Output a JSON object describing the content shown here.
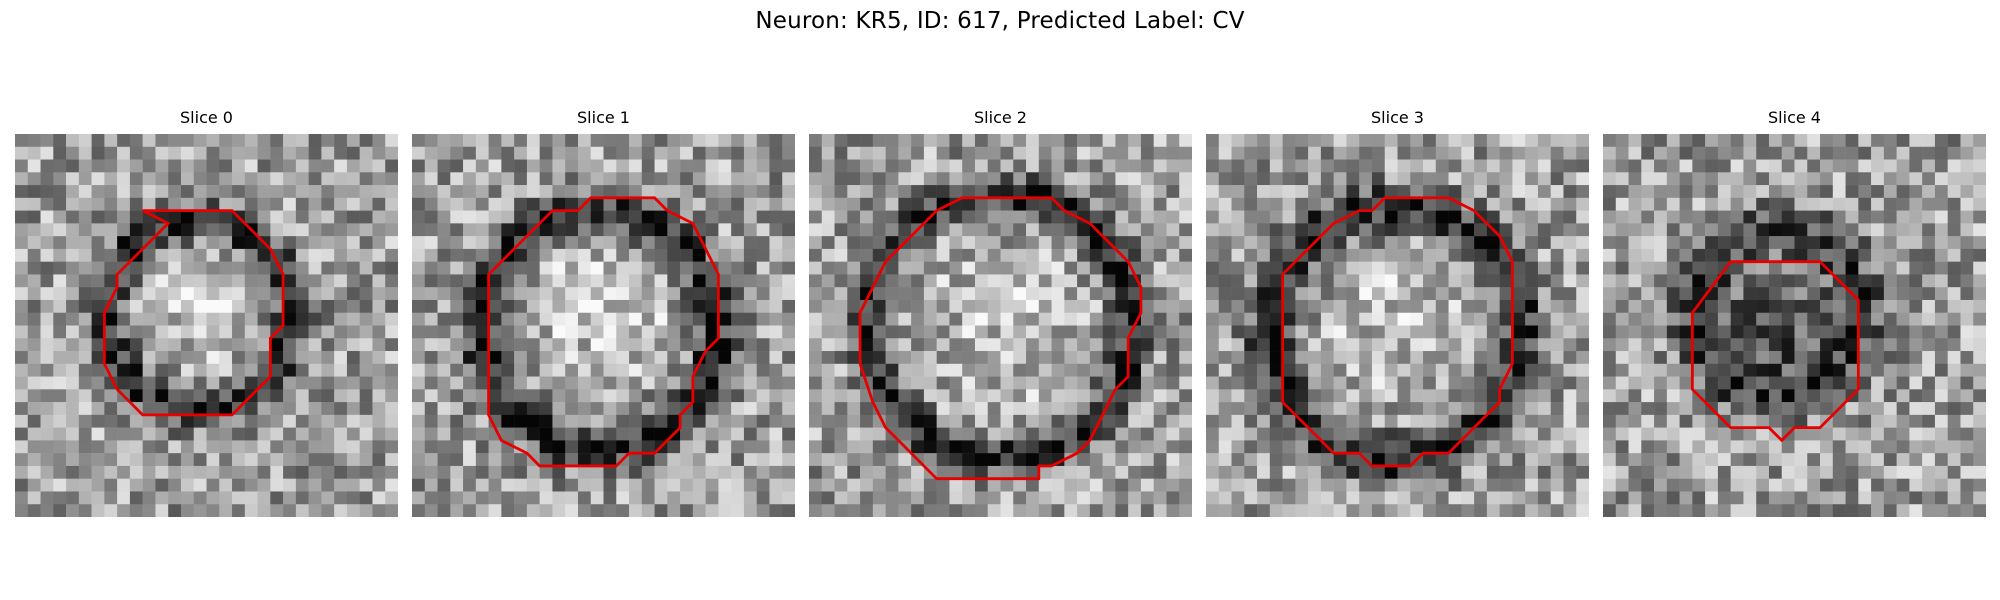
{
  "figure": {
    "title": "Neuron: KR5, ID: 617, Predicted Label: CV"
  },
  "style": {
    "contour_color": "#e60000",
    "colormap": "grayscale"
  },
  "panels": [
    {
      "title": "Slice 0",
      "grid": 30,
      "seed": 11,
      "ring": {
        "cx": 14.3,
        "cy": 14.2,
        "r": 7.3,
        "w": 1.6,
        "strength": 0.48
      },
      "blob": {
        "cx": 14.5,
        "cy": 13.0,
        "r": 4.2,
        "strength": 0.22
      },
      "contour": [
        [
          10,
          6
        ],
        [
          17,
          6
        ],
        [
          20,
          9
        ],
        [
          21,
          11
        ],
        [
          21,
          15
        ],
        [
          20,
          16
        ],
        [
          20,
          19
        ],
        [
          17,
          22
        ],
        [
          10,
          22
        ],
        [
          8,
          20
        ],
        [
          7,
          18
        ],
        [
          7,
          14
        ],
        [
          8,
          12
        ],
        [
          8,
          11
        ],
        [
          10,
          9
        ],
        [
          11,
          8
        ],
        [
          12,
          7
        ]
      ]
    },
    {
      "title": "Slice 1",
      "grid": 30,
      "seed": 23,
      "ring": {
        "cx": 14.6,
        "cy": 15.3,
        "r": 9.2,
        "w": 1.7,
        "strength": 0.5
      },
      "blob": {
        "cx": 14.5,
        "cy": 13.0,
        "r": 6.0,
        "strength": 0.18
      },
      "contour": [
        [
          14,
          5
        ],
        [
          19,
          5
        ],
        [
          20,
          6
        ],
        [
          22,
          7
        ],
        [
          23,
          9
        ],
        [
          24,
          11
        ],
        [
          24,
          16
        ],
        [
          23,
          17
        ],
        [
          22,
          19
        ],
        [
          22,
          21
        ],
        [
          21,
          22
        ],
        [
          21,
          23
        ],
        [
          19,
          25
        ],
        [
          17,
          25
        ],
        [
          16,
          26
        ],
        [
          10,
          26
        ],
        [
          9,
          25
        ],
        [
          7,
          24
        ],
        [
          6,
          22
        ],
        [
          6,
          11
        ],
        [
          7,
          10
        ],
        [
          8,
          9
        ],
        [
          9,
          8
        ],
        [
          10,
          7
        ],
        [
          11,
          6
        ],
        [
          13,
          6
        ]
      ]
    },
    {
      "title": "Slice 2",
      "grid": 30,
      "seed": 37,
      "ring": {
        "cx": 15.0,
        "cy": 15.0,
        "r": 10.3,
        "w": 1.5,
        "strength": 0.5
      },
      "blob": {
        "cx": 15.0,
        "cy": 15.0,
        "r": 7.0,
        "strength": 0.12
      },
      "contour": [
        [
          12,
          5
        ],
        [
          19,
          5
        ],
        [
          20,
          6
        ],
        [
          22,
          7
        ],
        [
          23,
          8
        ],
        [
          24,
          9
        ],
        [
          25,
          10
        ],
        [
          26,
          12
        ],
        [
          26,
          14
        ],
        [
          25,
          16
        ],
        [
          25,
          19
        ],
        [
          24,
          20
        ],
        [
          23,
          22
        ],
        [
          22,
          24
        ],
        [
          21,
          25
        ],
        [
          19,
          26
        ],
        [
          18,
          26
        ],
        [
          18,
          27
        ],
        [
          10,
          27
        ],
        [
          9,
          26
        ],
        [
          8,
          25
        ],
        [
          6,
          23
        ],
        [
          5,
          21
        ],
        [
          4,
          18
        ],
        [
          4,
          14
        ],
        [
          5,
          12
        ],
        [
          6,
          10
        ],
        [
          7,
          9
        ],
        [
          8,
          8
        ],
        [
          9,
          7
        ],
        [
          10,
          6
        ]
      ]
    },
    {
      "title": "Slice 3",
      "grid": 30,
      "seed": 51,
      "ring": {
        "cx": 14.8,
        "cy": 15.6,
        "r": 9.8,
        "w": 1.8,
        "strength": 0.5
      },
      "blob": {
        "cx": 15.0,
        "cy": 15.0,
        "r": 6.5,
        "strength": 0.12
      },
      "contour": [
        [
          14,
          5
        ],
        [
          19,
          5
        ],
        [
          21,
          6
        ],
        [
          23,
          8
        ],
        [
          24,
          10
        ],
        [
          24,
          18
        ],
        [
          23,
          20
        ],
        [
          23,
          21
        ],
        [
          21,
          23
        ],
        [
          20,
          24
        ],
        [
          19,
          25
        ],
        [
          17,
          25
        ],
        [
          16,
          26
        ],
        [
          13,
          26
        ],
        [
          12,
          25
        ],
        [
          10,
          25
        ],
        [
          8,
          23
        ],
        [
          7,
          22
        ],
        [
          6,
          21
        ],
        [
          6,
          11
        ],
        [
          7,
          10
        ],
        [
          9,
          8
        ],
        [
          10,
          7
        ],
        [
          12,
          6
        ],
        [
          13,
          6
        ]
      ]
    },
    {
      "title": "Slice 4",
      "grid": 30,
      "seed": 67,
      "ring": {
        "cx": 13.7,
        "cy": 14.0,
        "r": 6.5,
        "w": 2.0,
        "strength": 0.35
      },
      "blob": {
        "cx": 13.3,
        "cy": 15.0,
        "r": 4.5,
        "strength": 0.32
      },
      "contour": [
        [
          10,
          10
        ],
        [
          17,
          10
        ],
        [
          20,
          13
        ],
        [
          20,
          20
        ],
        [
          17,
          23
        ],
        [
          15,
          23
        ],
        [
          14,
          24
        ],
        [
          13,
          23
        ],
        [
          10,
          23
        ],
        [
          7,
          20
        ],
        [
          7,
          14
        ]
      ]
    }
  ]
}
